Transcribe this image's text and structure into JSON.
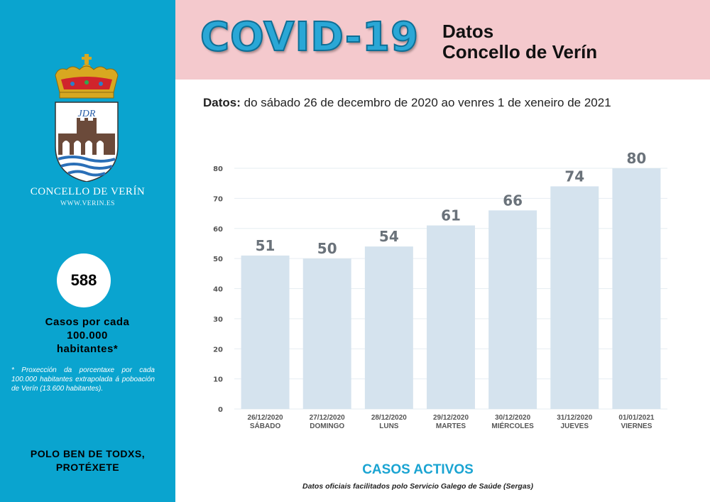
{
  "header": {
    "title": "COVID-19",
    "subtitle_line1": "Datos",
    "subtitle_line2": "Concello de Verín"
  },
  "date_range": {
    "label": "Datos:",
    "text": "do sábado 26 de decembro de 2020 ao venres 1 de xeneiro de 2021"
  },
  "sidebar": {
    "crest_initials": "JDR",
    "org_name": "CONCELLO DE VERÍN",
    "website": "WWW.VERIN.ES",
    "stat_value": "588",
    "stat_label": "Casos por cada\n100.000\nhabitantes*",
    "footnote": "* Proxección da porcentaxe por cada 100.000 habitantes extrapolada á poboación de Verín (13.600 habitantes).",
    "slogan": "POLO BEN DE TODXS,\nPROTÉXETE"
  },
  "colors": {
    "sidebar": "#0aa4cf",
    "header": "#f4c9cd",
    "bar": "#d5e3ee",
    "title": "#1aa4d2"
  },
  "chart_data": {
    "type": "bar",
    "title": "CASOS ACTIVOS",
    "source": "Datos oficiais facilitados polo Servicio Galego de Saúde (Sergas)",
    "categories": [
      [
        "26/12/2020",
        "SÁBADO"
      ],
      [
        "27/12/2020",
        "DOMINGO"
      ],
      [
        "28/12/2020",
        "LUNS"
      ],
      [
        "29/12/2020",
        "MARTES"
      ],
      [
        "30/12/2020",
        "MIÉRCOLES"
      ],
      [
        "31/12/2020",
        "JUEVES"
      ],
      [
        "01/01/2021",
        "VIERNES"
      ]
    ],
    "values": [
      51,
      50,
      54,
      61,
      66,
      74,
      80
    ],
    "ylim": [
      0,
      80
    ],
    "yticks": [
      0,
      10,
      20,
      30,
      40,
      50,
      60,
      70,
      80
    ],
    "grid": true
  }
}
